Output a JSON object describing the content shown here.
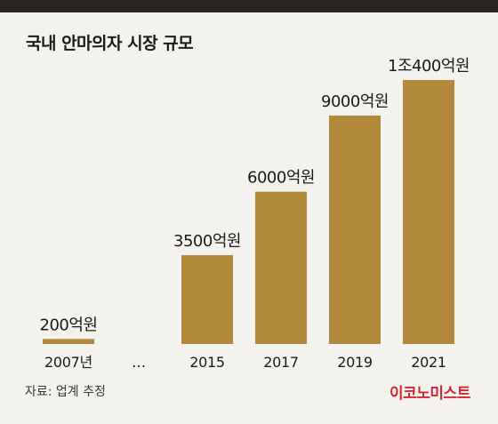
{
  "chart_data": {
    "type": "bar",
    "title": "국내 안마의자 시장 규모",
    "categories": [
      "2007년",
      "…",
      "2015",
      "2017",
      "2019",
      "2021"
    ],
    "values": [
      200,
      null,
      3500,
      6000,
      9000,
      10400
    ],
    "data_labels": [
      "200억원",
      "",
      "3500억원",
      "6000억원",
      "9000억원",
      "1조400억원"
    ],
    "unit": "억원",
    "ylim": [
      0,
      10400
    ],
    "grid": false,
    "legend": "none"
  },
  "source": "자료: 업계 추정",
  "brand": "이코노미스트",
  "colors": {
    "bar": "#b2893a",
    "top_rule": "#2a2422",
    "brand": "#d6262f",
    "background": "#f4f2ee"
  }
}
